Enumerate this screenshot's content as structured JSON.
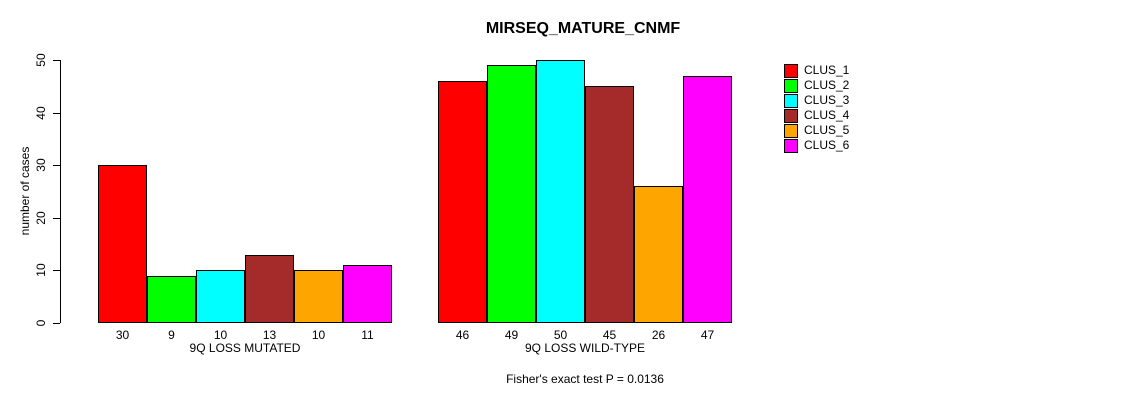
{
  "chart_data": {
    "type": "bar",
    "title": "MIRSEQ_MATURE_CNMF",
    "ylabel": "number of cases",
    "categories": [
      "9Q LOSS MUTATED",
      "9Q LOSS WILD-TYPE"
    ],
    "series": [
      {
        "name": "CLUS_1",
        "color": "#FF0000",
        "values": [
          30,
          46
        ]
      },
      {
        "name": "CLUS_2",
        "color": "#00FF00",
        "values": [
          9,
          49
        ]
      },
      {
        "name": "CLUS_3",
        "color": "#00FFFF",
        "values": [
          10,
          50
        ]
      },
      {
        "name": "CLUS_4",
        "color": "#A52A2A",
        "values": [
          13,
          45
        ]
      },
      {
        "name": "CLUS_5",
        "color": "#FFA500",
        "values": [
          10,
          26
        ]
      },
      {
        "name": "CLUS_6",
        "color": "#FF00FF",
        "values": [
          11,
          47
        ]
      }
    ],
    "ylim": [
      0,
      50
    ],
    "yticks": [
      0,
      10,
      20,
      30,
      40,
      50
    ],
    "grid": false,
    "bar_value_labels": true,
    "legend_position": "right-inside",
    "bar_border_color": "#000000",
    "annotation": "Fisher's exact test P = 0.0136"
  }
}
